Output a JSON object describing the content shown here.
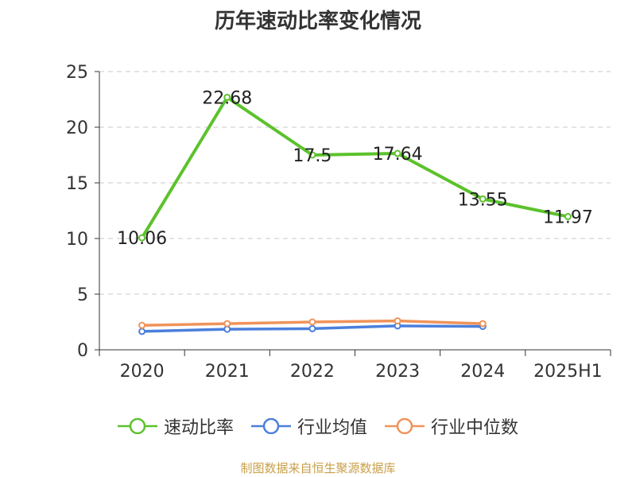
{
  "chart_data": {
    "type": "line",
    "title": "历年速动比率变化情况",
    "categories": [
      "2020",
      "2021",
      "2022",
      "2023",
      "2024",
      "2025H1"
    ],
    "yticks": [
      0,
      5,
      10,
      15,
      20,
      25
    ],
    "ylim": [
      0,
      25
    ],
    "grid": true,
    "legend_position": "bottom",
    "series": [
      {
        "name": "速动比率",
        "color": "#5cc22c",
        "values": [
          10.06,
          22.68,
          17.5,
          17.64,
          13.55,
          11.97
        ],
        "labels": [
          "10.06",
          "22.68",
          "17.5",
          "17.64",
          "13.55",
          "11.97"
        ]
      },
      {
        "name": "行业均值",
        "color": "#4b7fdc",
        "values": [
          1.65,
          1.85,
          1.9,
          2.15,
          2.1,
          null
        ]
      },
      {
        "name": "行业中位数",
        "color": "#f0935a",
        "values": [
          2.2,
          2.35,
          2.5,
          2.6,
          2.35,
          null
        ]
      }
    ]
  },
  "source_note": "制图数据来自恒生聚源数据库"
}
